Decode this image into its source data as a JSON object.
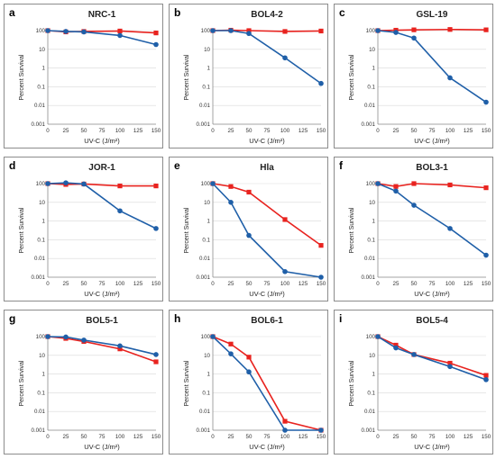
{
  "colors": {
    "red": "#e8231f",
    "blue": "#1f5fa8",
    "grid": "#d9d9d9",
    "frame": "#8c8c8c"
  },
  "chart_data": [
    {
      "type": "line",
      "letter": "a",
      "title": "NRC-1",
      "xlabel": "UV-C (J/m²)",
      "ylabel": "Percent Survival",
      "x": [
        0,
        25,
        50,
        100,
        150
      ],
      "xlim": [
        0,
        150
      ],
      "xticks": [
        0,
        25,
        50,
        75,
        100,
        125,
        150
      ],
      "yscale": "log",
      "ylim": [
        0.001,
        100
      ],
      "yticks": [
        "100",
        "10",
        "1",
        "0.1",
        "0.01",
        "0.001"
      ],
      "grid": true,
      "series": [
        {
          "color": "red",
          "marker": "square",
          "values": [
            100,
            85,
            90,
            95,
            75
          ]
        },
        {
          "color": "blue",
          "marker": "circle",
          "values": [
            100,
            90,
            85,
            55,
            18
          ]
        }
      ]
    },
    {
      "type": "line",
      "letter": "b",
      "title": "BOL4-2",
      "xlabel": "UV-C (J/m²)",
      "ylabel": "Percent Survival",
      "x": [
        0,
        25,
        50,
        100,
        150
      ],
      "xlim": [
        0,
        150
      ],
      "xticks": [
        0,
        25,
        50,
        75,
        100,
        125,
        150
      ],
      "yscale": "log",
      "ylim": [
        0.001,
        100
      ],
      "yticks": [
        "100",
        "10",
        "1",
        "0.1",
        "0.01",
        "0.001"
      ],
      "grid": true,
      "series": [
        {
          "color": "red",
          "marker": "square",
          "values": [
            100,
            105,
            100,
            90,
            95
          ]
        },
        {
          "color": "blue",
          "marker": "circle",
          "values": [
            100,
            100,
            70,
            3.5,
            0.15
          ]
        }
      ]
    },
    {
      "type": "line",
      "letter": "c",
      "title": "GSL-19",
      "xlabel": "UV-C (J/m²)",
      "ylabel": "Percent Survival",
      "x": [
        0,
        25,
        50,
        100,
        150
      ],
      "xlim": [
        0,
        150
      ],
      "xticks": [
        0,
        25,
        50,
        75,
        100,
        125,
        150
      ],
      "yscale": "log",
      "ylim": [
        0.001,
        100
      ],
      "yticks": [
        "100",
        "10",
        "1",
        "0.1",
        "0.01",
        "0.001"
      ],
      "grid": true,
      "series": [
        {
          "color": "red",
          "marker": "square",
          "values": [
            100,
            105,
            110,
            115,
            110
          ]
        },
        {
          "color": "blue",
          "marker": "circle",
          "values": [
            100,
            80,
            40,
            0.3,
            0.015
          ]
        }
      ]
    },
    {
      "type": "line",
      "letter": "d",
      "title": "JOR-1",
      "xlabel": "UV-C (J/m²)",
      "ylabel": "Percent Survival",
      "x": [
        0,
        25,
        50,
        100,
        150
      ],
      "xlim": [
        0,
        150
      ],
      "xticks": [
        0,
        25,
        50,
        75,
        100,
        125,
        150
      ],
      "yscale": "log",
      "ylim": [
        0.001,
        100
      ],
      "yticks": [
        "100",
        "10",
        "1",
        "0.1",
        "0.01",
        "0.001"
      ],
      "grid": true,
      "series": [
        {
          "color": "red",
          "marker": "square",
          "values": [
            100,
            90,
            95,
            75,
            75
          ]
        },
        {
          "color": "blue",
          "marker": "circle",
          "values": [
            100,
            110,
            95,
            3.5,
            0.4
          ]
        }
      ]
    },
    {
      "type": "line",
      "letter": "e",
      "title": "Hla",
      "xlabel": "UV-C (J/m²)",
      "ylabel": "Percent Survival",
      "x": [
        0,
        25,
        50,
        100,
        150
      ],
      "xlim": [
        0,
        150
      ],
      "xticks": [
        0,
        25,
        50,
        75,
        100,
        125,
        150
      ],
      "yscale": "log",
      "ylim": [
        0.001,
        100
      ],
      "yticks": [
        "100",
        "10",
        "1",
        "0.1",
        "0.01",
        "0.001"
      ],
      "grid": true,
      "series": [
        {
          "color": "red",
          "marker": "square",
          "values": [
            100,
            70,
            35,
            1.2,
            0.05
          ]
        },
        {
          "color": "blue",
          "marker": "circle",
          "values": [
            100,
            10,
            0.17,
            0.002,
            0.001
          ]
        }
      ]
    },
    {
      "type": "line",
      "letter": "f",
      "title": "BOL3-1",
      "xlabel": "UV-C (J/m²)",
      "ylabel": "Percent Survival",
      "x": [
        0,
        25,
        50,
        100,
        150
      ],
      "xlim": [
        0,
        150
      ],
      "xticks": [
        0,
        25,
        50,
        75,
        100,
        125,
        150
      ],
      "yscale": "log",
      "ylim": [
        0.001,
        100
      ],
      "yticks": [
        "100",
        "10",
        "1",
        "0.1",
        "0.01",
        "0.001"
      ],
      "grid": true,
      "series": [
        {
          "color": "red",
          "marker": "square",
          "values": [
            100,
            70,
            100,
            85,
            60
          ]
        },
        {
          "color": "blue",
          "marker": "circle",
          "values": [
            100,
            40,
            7,
            0.4,
            0.015
          ]
        }
      ]
    },
    {
      "type": "line",
      "letter": "g",
      "title": "BOL5-1",
      "xlabel": "UV-C (J/m²)",
      "ylabel": "Percent Survival",
      "x": [
        0,
        25,
        50,
        100,
        150
      ],
      "xlim": [
        0,
        150
      ],
      "xticks": [
        0,
        25,
        50,
        75,
        100,
        125,
        150
      ],
      "yscale": "log",
      "ylim": [
        0.001,
        100
      ],
      "yticks": [
        "100",
        "10",
        "1",
        "0.1",
        "0.01",
        "0.001"
      ],
      "grid": true,
      "series": [
        {
          "color": "red",
          "marker": "square",
          "values": [
            100,
            80,
            55,
            22,
            4.5
          ]
        },
        {
          "color": "blue",
          "marker": "circle",
          "values": [
            100,
            95,
            65,
            32,
            11
          ]
        }
      ]
    },
    {
      "type": "line",
      "letter": "h",
      "title": "BOL6-1",
      "xlabel": "UV-C (J/m²)",
      "ylabel": "Percent Survival",
      "x": [
        0,
        25,
        50,
        100,
        150
      ],
      "xlim": [
        0,
        150
      ],
      "xticks": [
        0,
        25,
        50,
        75,
        100,
        125,
        150
      ],
      "yscale": "log",
      "ylim": [
        0.001,
        100
      ],
      "yticks": [
        "100",
        "10",
        "1",
        "0.1",
        "0.01",
        "0.001"
      ],
      "grid": true,
      "series": [
        {
          "color": "red",
          "marker": "square",
          "values": [
            100,
            40,
            8,
            0.003,
            0.001
          ]
        },
        {
          "color": "blue",
          "marker": "circle",
          "values": [
            100,
            12,
            1.3,
            0.001,
            0.001
          ]
        }
      ]
    },
    {
      "type": "line",
      "letter": "i",
      "title": "BOL5-4",
      "xlabel": "UV-C (J/m²)",
      "ylabel": "Percent Survival",
      "x": [
        0,
        25,
        50,
        100,
        150
      ],
      "xlim": [
        0,
        150
      ],
      "xticks": [
        0,
        25,
        50,
        75,
        100,
        125,
        150
      ],
      "yscale": "log",
      "ylim": [
        0.001,
        100
      ],
      "yticks": [
        "100",
        "10",
        "1",
        "0.1",
        "0.01",
        "0.001"
      ],
      "grid": true,
      "series": [
        {
          "color": "red",
          "marker": "square",
          "values": [
            100,
            35,
            11,
            3.8,
            0.85
          ]
        },
        {
          "color": "blue",
          "marker": "circle",
          "values": [
            100,
            25,
            11,
            2.5,
            0.5
          ]
        }
      ]
    }
  ]
}
